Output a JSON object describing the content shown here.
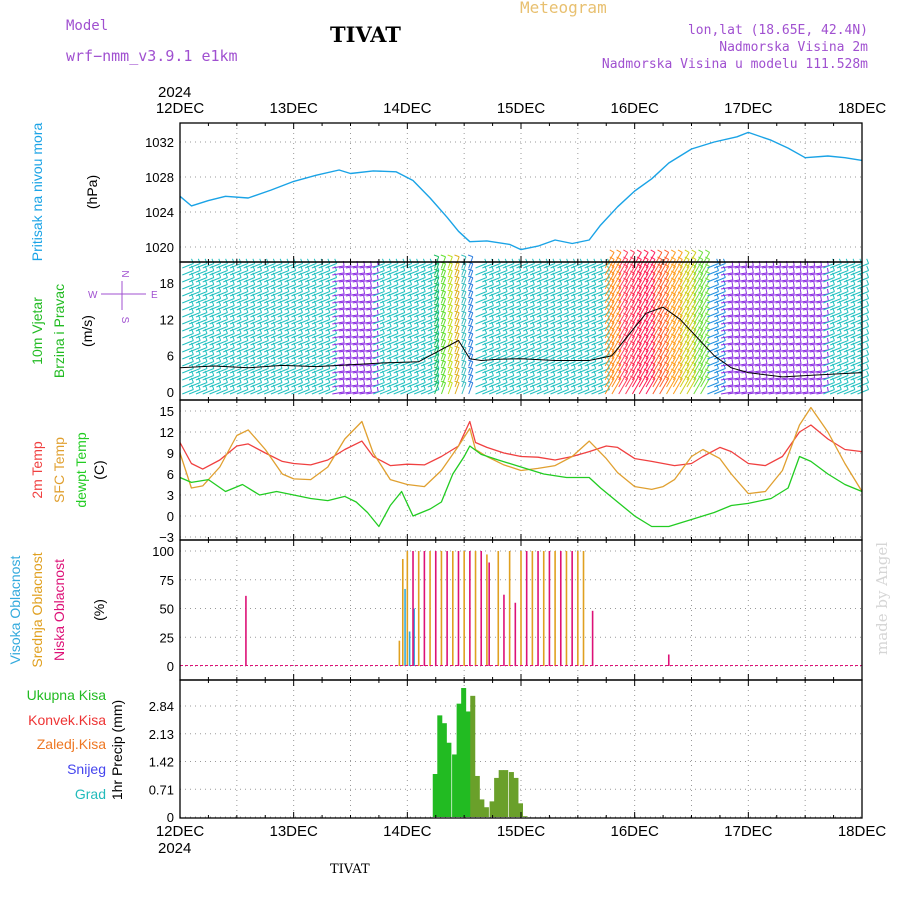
{
  "header": {
    "model_label": "Model",
    "model_name": "wrf−nmm_v3.9.1 e1km",
    "station": "TIVAT",
    "meteogram_label": "Meteogram",
    "lonlat": "lon,lat (18.65E, 42.4N)",
    "elevation": "Nadmorska Visina 2m",
    "model_elevation": "Nadmorska Visina u modelu 111.528m",
    "footer_station": "TIVAT",
    "watermark": "made by Angel"
  },
  "colors": {
    "pressure": "#1aa3e6",
    "temp2m": "#f04040",
    "sfc_temp": "#e0a030",
    "dewpt": "#22cc22",
    "high_cloud": "#33aadd",
    "mid_cloud": "#e0a020",
    "low_cloud": "#dd1177",
    "total_precip": "#22bb22",
    "conv_precip": "#ee3333",
    "frozen_precip": "#ee7722",
    "snow": "#4444ee",
    "hail": "#22bbbb",
    "header_purple": "#a050d0",
    "meteogram_gold": "#e8c070",
    "wind_speed_line": "#000000",
    "wind_gust": "#ff3030"
  },
  "chart_data": {
    "type": "line",
    "time_axis": {
      "year_label": "2024",
      "ticks": [
        "12DEC",
        "13DEC",
        "14DEC",
        "15DEC",
        "16DEC",
        "17DEC",
        "18DEC"
      ],
      "range_days": [
        0,
        6
      ]
    },
    "panels": [
      {
        "id": "pressure",
        "type": "line",
        "ylabel_color": "Pritisak na nivou mora",
        "ylabel_unit": "(hPa)",
        "yticks": [
          "1020",
          "1024",
          "1028",
          "1032"
        ],
        "ylim": [
          1017,
          1034
        ],
        "series": [
          {
            "x": [
              0,
              0.1,
              0.25,
              0.4,
              0.6,
              0.8,
              1.0,
              1.2,
              1.4,
              1.5,
              1.7,
              1.9,
              2.05,
              2.2,
              2.35,
              2.45,
              2.55,
              2.7,
              2.9,
              3.0,
              3.15,
              3.3,
              3.45,
              3.6,
              3.7,
              3.85,
              4.0,
              4.15,
              4.3,
              4.5,
              4.7,
              4.9,
              5.0,
              5.2,
              5.35,
              5.5,
              5.7,
              5.85,
              6.0
            ],
            "y": [
              1025.8,
              1024.7,
              1025.3,
              1025.8,
              1025.6,
              1026.5,
              1027.5,
              1028.2,
              1028.8,
              1028.4,
              1028.7,
              1028.6,
              1027.6,
              1025.6,
              1023.4,
              1021.8,
              1020.6,
              1020.7,
              1020.3,
              1019.7,
              1020.1,
              1020.8,
              1020.4,
              1020.8,
              1022.5,
              1024.6,
              1026.4,
              1027.8,
              1029.6,
              1031.2,
              1032.0,
              1032.6,
              1033.1,
              1032.2,
              1031.3,
              1030.2,
              1030.4,
              1030.2,
              1029.9
            ]
          }
        ]
      },
      {
        "id": "wind",
        "type": "line",
        "ylabel_color_1": "10m Vjetar",
        "ylabel_color_2": "Brzina i Pravac",
        "ylabel_unit": "(m/s)",
        "compass": {
          "n": "N",
          "s": "S",
          "w": "W",
          "e": "E"
        },
        "yticks": [
          "0",
          "6",
          "12",
          "18"
        ],
        "ylim": [
          -1.5,
          21
        ],
        "series": [
          {
            "name": "speed",
            "x": [
              0,
              0.3,
              0.6,
              0.9,
              1.2,
              1.5,
              1.8,
              2.1,
              2.3,
              2.45,
              2.55,
              2.65,
              2.8,
              3.0,
              3.3,
              3.6,
              3.8,
              3.95,
              4.1,
              4.25,
              4.4,
              4.55,
              4.7,
              4.85,
              5.0,
              5.3,
              5.6,
              6.0
            ],
            "y": [
              4,
              4.3,
              4,
              4.4,
              4.2,
              4.5,
              4.8,
              5,
              7,
              8.5,
              5.5,
              5.2,
              5.4,
              5.5,
              5.2,
              5.2,
              6,
              9.5,
              13,
              14,
              12,
              9,
              6,
              4,
              3.2,
              2.5,
              2.8,
              3.2
            ]
          }
        ]
      },
      {
        "id": "temperature",
        "type": "line",
        "ylabel_1": "2m Temp",
        "ylabel_2": "SFC Temp",
        "ylabel_3": "dewpt Temp",
        "ylabel_unit": "(C)",
        "yticks": [
          "−3",
          "0",
          "3",
          "6",
          "9",
          "12",
          "15"
        ],
        "ylim": [
          -3,
          16
        ],
        "series": [
          {
            "name": "2m Temp",
            "x": [
              0,
              0.1,
              0.2,
              0.35,
              0.5,
              0.6,
              0.75,
              0.9,
              1.0,
              1.15,
              1.3,
              1.45,
              1.6,
              1.7,
              1.85,
              2.0,
              2.15,
              2.3,
              2.45,
              2.55,
              2.6,
              2.7,
              2.85,
              3.0,
              3.15,
              3.3,
              3.45,
              3.6,
              3.75,
              3.85,
              4.0,
              4.15,
              4.25,
              4.35,
              4.5,
              4.6,
              4.75,
              4.85,
              5.0,
              5.15,
              5.3,
              5.45,
              5.55,
              5.7,
              5.85,
              6.0
            ],
            "y": [
              10.5,
              7.5,
              6.7,
              8,
              10,
              10.3,
              9,
              7.8,
              7.5,
              7.3,
              8,
              9.5,
              10.7,
              8.5,
              7.2,
              7.4,
              7.3,
              8.5,
              10,
              13.5,
              10.5,
              9.8,
              9,
              8.5,
              8.4,
              8,
              8.5,
              9.2,
              10,
              9.8,
              8.2,
              7.8,
              7.5,
              7.2,
              7.5,
              8.5,
              9.8,
              9.2,
              7.5,
              7.2,
              8.5,
              12,
              13,
              11,
              9.5,
              9.2
            ]
          },
          {
            "name": "SFC Temp",
            "x": [
              0,
              0.1,
              0.2,
              0.35,
              0.5,
              0.6,
              0.75,
              0.9,
              1.0,
              1.15,
              1.3,
              1.45,
              1.6,
              1.7,
              1.85,
              2.0,
              2.15,
              2.3,
              2.45,
              2.55,
              2.6,
              2.7,
              2.85,
              3.0,
              3.15,
              3.3,
              3.45,
              3.6,
              3.75,
              3.85,
              4.0,
              4.15,
              4.25,
              4.35,
              4.5,
              4.6,
              4.75,
              4.85,
              5.0,
              5.15,
              5.3,
              5.45,
              5.55,
              5.7,
              5.85,
              6.0
            ],
            "y": [
              9,
              4,
              4.3,
              7,
              11.5,
              12.3,
              9.5,
              6,
              5.3,
              5.2,
              7,
              11,
              13.5,
              9,
              5.2,
              4.5,
              4.2,
              6.5,
              10,
              12.5,
              9.5,
              8.5,
              7.3,
              6.5,
              6.8,
              7.2,
              8.5,
              10.7,
              8.2,
              6.2,
              4.2,
              3.8,
              4.2,
              5.2,
              8.5,
              9.5,
              8.2,
              6,
              3.2,
              3.5,
              6.5,
              13,
              15.5,
              12,
              7.5,
              3.5
            ]
          },
          {
            "name": "dewpt Temp",
            "x": [
              0,
              0.1,
              0.25,
              0.4,
              0.55,
              0.7,
              0.85,
              1.0,
              1.15,
              1.3,
              1.45,
              1.55,
              1.65,
              1.75,
              1.85,
              1.95,
              2.05,
              2.2,
              2.3,
              2.4,
              2.5,
              2.55,
              2.65,
              2.8,
              3.0,
              3.2,
              3.4,
              3.6,
              3.7,
              3.85,
              4.0,
              4.15,
              4.3,
              4.5,
              4.7,
              4.85,
              5.0,
              5.2,
              5.35,
              5.45,
              5.55,
              5.7,
              5.85,
              6.0
            ],
            "y": [
              5.5,
              4.8,
              5.2,
              3.5,
              4.5,
              3,
              3.5,
              3,
              2.5,
              2.2,
              2.8,
              2,
              0.5,
              -1.5,
              1.5,
              3.5,
              0,
              1,
              2,
              6,
              8.5,
              10,
              8.8,
              8,
              7,
              6,
              5.5,
              5.5,
              4,
              2,
              0,
              -1.5,
              -1.5,
              -0.5,
              0.5,
              1.5,
              1.8,
              2.5,
              4,
              8.5,
              7.8,
              6,
              4.5,
              3.5
            ]
          }
        ]
      },
      {
        "id": "cloud",
        "type": "bar",
        "ylabel_1": "Visoka Oblacnost",
        "ylabel_2": "Srednja Oblacnost",
        "ylabel_3": "Niska Oblacnost",
        "ylabel_unit": "(%)",
        "yticks": [
          "0",
          "25",
          "50",
          "75",
          "100"
        ],
        "ylim": [
          0,
          100
        ],
        "series": [
          {
            "name": "Visoka Oblacnost",
            "x": [
              1.98,
              2.02,
              2.06
            ],
            "y": [
              67,
              30,
              50
            ]
          },
          {
            "name": "Srednja Oblacnost",
            "x": [
              1.93,
              1.96,
              2.0,
              2.1,
              2.2,
              2.3,
              2.4,
              2.5,
              2.6,
              2.7,
              2.8,
              2.9,
              3.0,
              3.1,
              3.2,
              3.3,
              3.4,
              3.5,
              3.55
            ],
            "y": [
              22,
              93,
              100,
              100,
              100,
              100,
              100,
              100,
              100,
              97,
              100,
              100,
              100,
              100,
              100,
              100,
              100,
              100,
              100
            ]
          },
          {
            "name": "Niska Oblacnost",
            "x": [
              0.58,
              2.05,
              2.15,
              2.25,
              2.35,
              2.45,
              2.55,
              2.65,
              2.72,
              2.85,
              2.95,
              3.05,
              3.15,
              3.25,
              3.35,
              3.45,
              3.63,
              4.3
            ],
            "y": [
              61,
              100,
              100,
              100,
              100,
              100,
              100,
              100,
              90,
              62,
              55,
              100,
              100,
              100,
              100,
              100,
              48,
              10
            ]
          }
        ]
      },
      {
        "id": "precip",
        "type": "bar",
        "ylabel_1": "Ukupna Kisa",
        "ylabel_2": "Konvek.Kisa",
        "ylabel_3": "Zaledj.Kisa",
        "ylabel_4": "Snijeg",
        "ylabel_5": "Grad",
        "ylabel_unit": "1hr Precip (mm)",
        "yticks": [
          "0",
          "0.71",
          "1.42",
          "2.13",
          "2.84"
        ],
        "ylim": [
          0,
          3.4
        ],
        "series": [
          {
            "name": "Ukupna Kisa",
            "x": [
              2.25,
              2.29,
              2.33,
              2.37,
              2.42,
              2.46,
              2.5,
              2.54,
              2.58,
              2.62,
              2.66,
              2.7,
              2.75,
              2.79,
              2.83,
              2.87,
              2.92,
              2.96,
              3.0,
              3.04
            ],
            "y": [
              1.1,
              2.6,
              2.4,
              1.9,
              1.6,
              2.9,
              3.3,
              2.7,
              3.1,
              1.05,
              0.45,
              0.25,
              0.4,
              1.0,
              1.2,
              1.2,
              1.15,
              1.0,
              0.35,
              0.02
            ]
          }
        ]
      }
    ]
  }
}
